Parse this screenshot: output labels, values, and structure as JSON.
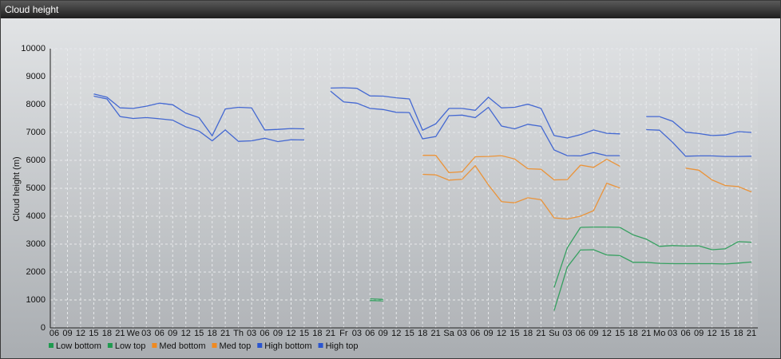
{
  "chart_data": {
    "type": "line",
    "title": "Cloud height",
    "ylabel": "Cloud height (m)",
    "categories": [
      "06",
      "09",
      "12",
      "15",
      "18",
      "21",
      "We",
      "03",
      "06",
      "09",
      "12",
      "15",
      "18",
      "21",
      "Th",
      "03",
      "06",
      "09",
      "12",
      "15",
      "18",
      "21",
      "Fr",
      "03",
      "06",
      "09",
      "12",
      "15",
      "18",
      "21",
      "Sa",
      "03",
      "06",
      "09",
      "12",
      "15",
      "18",
      "21",
      "Su",
      "03",
      "06",
      "09",
      "12",
      "15",
      "18",
      "21",
      "Mo",
      "03",
      "06",
      "09",
      "12",
      "15",
      "18",
      "21"
    ],
    "ylim": [
      0,
      10000
    ],
    "yticks": [
      0,
      1000,
      2000,
      3000,
      4000,
      5000,
      6000,
      7000,
      8000,
      9000,
      10000
    ],
    "grid": true,
    "series": [
      {
        "name": "Low bottom",
        "color": "#1f9a4f",
        "values": [
          null,
          null,
          null,
          null,
          null,
          null,
          null,
          null,
          null,
          null,
          null,
          null,
          null,
          null,
          null,
          null,
          null,
          null,
          null,
          null,
          null,
          null,
          null,
          null,
          980,
          970,
          null,
          null,
          null,
          null,
          null,
          null,
          null,
          null,
          null,
          null,
          null,
          null,
          620,
          2180,
          2790,
          2800,
          2610,
          2590,
          2350,
          2350,
          2310,
          2300,
          2300,
          2300,
          2300,
          2290,
          2320,
          2360
        ]
      },
      {
        "name": "Low top",
        "color": "#1f9a4f",
        "values": [
          null,
          null,
          null,
          null,
          null,
          null,
          null,
          null,
          null,
          null,
          null,
          null,
          null,
          null,
          null,
          null,
          null,
          null,
          null,
          null,
          null,
          null,
          null,
          null,
          1040,
          1020,
          null,
          null,
          null,
          null,
          null,
          null,
          null,
          null,
          null,
          null,
          null,
          null,
          1450,
          2870,
          3600,
          3610,
          3610,
          3600,
          3330,
          3180,
          2920,
          2950,
          2930,
          2940,
          2800,
          2830,
          3090,
          3070
        ]
      },
      {
        "name": "Med bottom",
        "color": "#f08a20",
        "values": [
          null,
          null,
          null,
          null,
          null,
          null,
          null,
          null,
          null,
          null,
          null,
          null,
          null,
          null,
          null,
          null,
          null,
          null,
          null,
          null,
          null,
          null,
          null,
          null,
          null,
          null,
          null,
          null,
          5500,
          5480,
          5290,
          5320,
          5810,
          5120,
          4520,
          4480,
          4660,
          4590,
          3940,
          3900,
          4000,
          4200,
          5180,
          5010,
          null,
          null,
          null,
          null,
          null,
          null,
          null,
          null,
          null,
          null
        ]
      },
      {
        "name": "Med top",
        "color": "#f08a20",
        "values": [
          null,
          null,
          null,
          null,
          null,
          null,
          null,
          null,
          null,
          null,
          null,
          null,
          null,
          null,
          null,
          null,
          null,
          null,
          null,
          null,
          null,
          null,
          null,
          null,
          null,
          null,
          null,
          null,
          6180,
          6180,
          5560,
          5590,
          6130,
          6140,
          6170,
          6050,
          5700,
          5680,
          5300,
          5310,
          5830,
          5750,
          6040,
          5790,
          null,
          null,
          null,
          null,
          5720,
          5650,
          5300,
          5100,
          5060,
          4870
        ]
      },
      {
        "name": "High bottom",
        "color": "#2a55d0",
        "values": [
          null,
          null,
          null,
          8300,
          8200,
          7570,
          7500,
          7530,
          7490,
          7440,
          7200,
          7050,
          6700,
          7090,
          6680,
          6700,
          6790,
          6670,
          6740,
          6730,
          null,
          8480,
          8090,
          8050,
          7860,
          7820,
          7720,
          7710,
          6770,
          6850,
          7600,
          7620,
          7530,
          7900,
          7230,
          7130,
          7290,
          7220,
          6370,
          6170,
          6160,
          6280,
          6170,
          6170,
          null,
          7100,
          7080,
          6650,
          6150,
          6160,
          6160,
          6140,
          6140,
          6150
        ]
      },
      {
        "name": "High top",
        "color": "#2a55d0",
        "values": [
          null,
          null,
          null,
          8380,
          8260,
          7880,
          7860,
          7940,
          8050,
          7990,
          7690,
          7530,
          6880,
          7840,
          7900,
          7880,
          7090,
          7110,
          7140,
          7130,
          null,
          8590,
          8600,
          8580,
          8310,
          8300,
          8240,
          8200,
          7080,
          7310,
          7860,
          7860,
          7790,
          8260,
          7880,
          7900,
          8010,
          7860,
          6890,
          6800,
          6920,
          7090,
          6970,
          6950,
          null,
          7570,
          7570,
          7400,
          7010,
          6960,
          6890,
          6910,
          7030,
          7000
        ]
      }
    ]
  }
}
